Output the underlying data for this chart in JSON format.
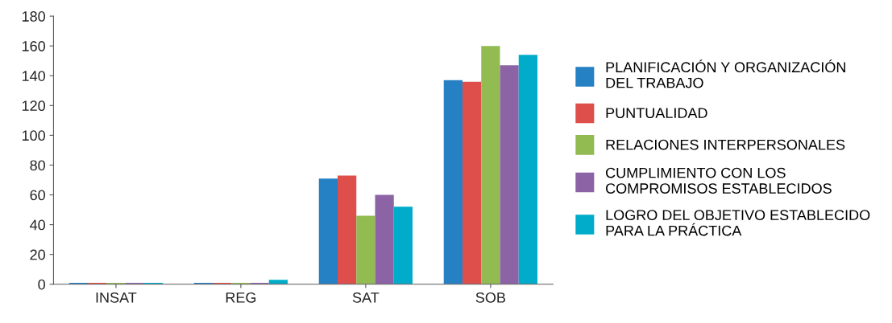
{
  "chart_data": {
    "type": "bar",
    "categories": [
      "INSAT",
      "REG",
      "SAT",
      "SOB"
    ],
    "series": [
      {
        "name": "PLANIFICACIÓN Y ORGANIZACIÓN DEL TRABAJO",
        "color": "#2581c4",
        "values": [
          1,
          1,
          71,
          137
        ]
      },
      {
        "name": "PUNTUALIDAD",
        "color": "#de4f4c",
        "values": [
          1,
          1,
          73,
          136
        ]
      },
      {
        "name": "RELACIONES INTERPERSONALES",
        "color": "#92bb51",
        "values": [
          1,
          1,
          46,
          160
        ]
      },
      {
        "name": "CUMPLIMIENTO CON LOS COMPROMISOS ESTABLECIDOS",
        "color": "#8c64a6",
        "values": [
          1,
          1,
          60,
          147
        ]
      },
      {
        "name": "LOGRO DEL OBJETIVO ESTABLECIDO PARA LA PRÁCTICA",
        "color": "#00acc9",
        "values": [
          1,
          3,
          52,
          154
        ]
      }
    ],
    "ylim": [
      0,
      180
    ],
    "yticks": [
      0,
      20,
      40,
      60,
      80,
      100,
      120,
      140,
      160,
      180
    ],
    "grid": false,
    "legend": "right"
  }
}
